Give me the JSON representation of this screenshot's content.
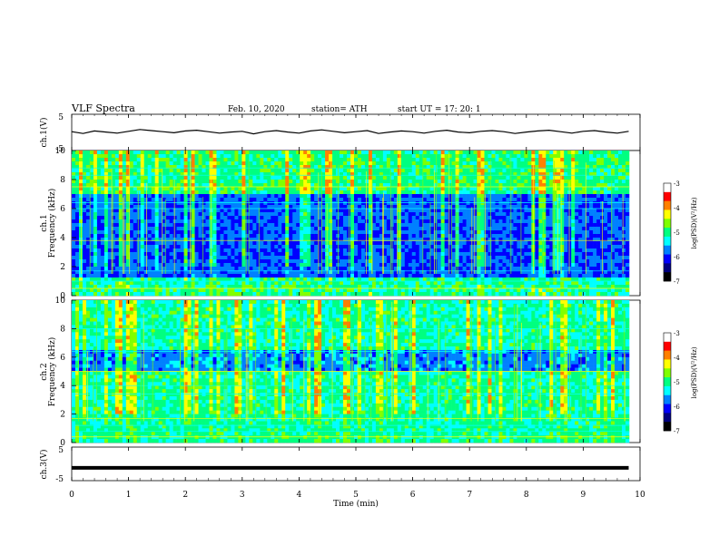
{
  "header": {
    "title": "VLF Spectra",
    "date": "Feb. 10, 2020",
    "station": "station= ATH",
    "start": "start  UT  =    17: 20: 1"
  },
  "chart_data": [
    {
      "type": "line",
      "name": "ch1-waveform",
      "ylabel": "ch.1(V)",
      "ylim": [
        -5,
        5
      ],
      "yticks": [
        "5",
        "-5"
      ],
      "xlim": [
        0,
        10
      ],
      "x": [
        0,
        0.2,
        0.4,
        0.6,
        0.8,
        1.0,
        1.2,
        1.4,
        1.6,
        1.8,
        2.0,
        2.2,
        2.4,
        2.6,
        2.8,
        3.0,
        3.2,
        3.4,
        3.6,
        3.8,
        4.0,
        4.2,
        4.4,
        4.6,
        4.8,
        5.0,
        5.2,
        5.4,
        5.6,
        5.8,
        6.0,
        6.2,
        6.4,
        6.6,
        6.8,
        7.0,
        7.2,
        7.4,
        7.6,
        7.8,
        8.0,
        8.2,
        8.4,
        8.6,
        8.8,
        9.0,
        9.2,
        9.4,
        9.6,
        9.8
      ],
      "y": [
        0.2,
        -0.3,
        0.4,
        0.1,
        -0.2,
        0.3,
        0.8,
        0.5,
        0.2,
        -0.1,
        0.4,
        0.6,
        0.2,
        -0.2,
        0.1,
        0.3,
        -0.4,
        0.2,
        0.5,
        0.1,
        -0.2,
        0.4,
        0.7,
        0.3,
        -0.1,
        0.2,
        0.5,
        -0.3,
        0.1,
        0.4,
        0.2,
        -0.2,
        0.3,
        0.6,
        0.1,
        -0.1,
        0.3,
        0.5,
        0.2,
        -0.3,
        0.1,
        0.4,
        0.6,
        0.2,
        -0.2,
        0.3,
        0.5,
        0.1,
        -0.2,
        0.3
      ]
    },
    {
      "type": "heatmap",
      "name": "ch2-spectrogram-top",
      "ylabel_line1": "ch.1",
      "ylabel_line2": "Frequency (kHz)",
      "ylim": [
        0,
        10
      ],
      "yticks": [
        "0",
        "2",
        "4",
        "6",
        "8",
        "10"
      ],
      "xlim": [
        0,
        10
      ],
      "colorbar": {
        "label": "log(PSD)(V²/Hz)",
        "range": [
          -7,
          -3
        ],
        "ticks": [
          "-3",
          "-4",
          "-5",
          "-6",
          "-7"
        ]
      }
    },
    {
      "type": "heatmap",
      "name": "ch2-spectrogram-bottom",
      "ylabel_line1": "ch.2",
      "ylabel_line2": "Frequency (kHz)",
      "ylim": [
        0,
        10
      ],
      "yticks": [
        "0",
        "2",
        "4",
        "6",
        "8",
        "10"
      ],
      "xlim": [
        0,
        10
      ],
      "colorbar": {
        "label": "log(PSD)(V²/Hz)",
        "range": [
          -7,
          -3
        ],
        "ticks": [
          "-3",
          "-4",
          "-5",
          "-6",
          "-7"
        ]
      }
    },
    {
      "type": "line",
      "name": "ch3-waveform",
      "ylabel": "ch.3(V)",
      "ylim": [
        -5,
        5
      ],
      "yticks": [
        "5",
        "-5"
      ],
      "xlim": [
        0,
        10
      ],
      "x": [
        0,
        9.8
      ],
      "y": [
        -1.2,
        -1.2
      ]
    }
  ],
  "xaxis": {
    "label": "Time (min)",
    "ticks": [
      "0",
      "1",
      "2",
      "3",
      "4",
      "5",
      "6",
      "7",
      "8",
      "9",
      "10"
    ]
  },
  "colors": {
    "cmap": [
      "#000080",
      "#0000ff",
      "#0080ff",
      "#00ffff",
      "#00ff80",
      "#80ff00",
      "#ffff00",
      "#ff8000",
      "#ff0000",
      "#ffffff"
    ]
  }
}
